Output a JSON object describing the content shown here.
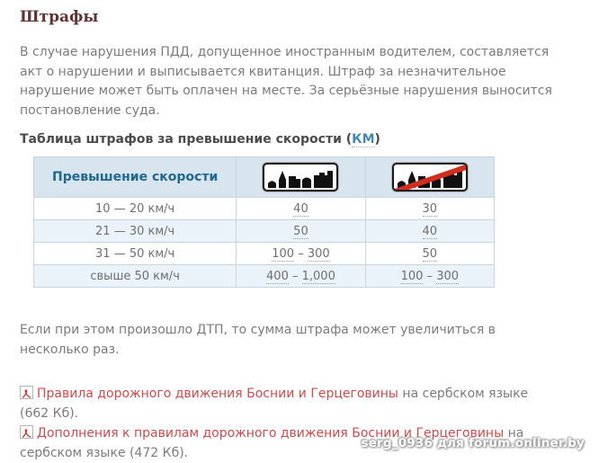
{
  "page": {
    "heading": "Штрафы",
    "intro": "В случае нарушения ПДД, допущенное иностранным водителем, составляется\nакт о нарушении и выписывается квитанция. Штраф за незначительное\nнарушение может быть оплачен на месте. За серьёзные нарушения выносится\nпостановление суда.",
    "table_title_prefix": "Таблица штрафов за превышение скорости (",
    "table_title_abbr": "КМ",
    "table_title_suffix": ")",
    "accident_note": "Если при этом произошло ДТП, то сумма штрафа может увеличиться в\nнесколько раз.",
    "watermark": "serg_0936 для forum.onliner.by"
  },
  "fines_table": {
    "header_label": "Превышение скорости",
    "column_icons": [
      "built-up-area-sign",
      "end-of-built-up-area-sign"
    ],
    "range_separator": " – ",
    "rows": [
      {
        "label": "10 — 20 км/ч",
        "in_city": [
          "40"
        ],
        "out_city": [
          "30"
        ]
      },
      {
        "label": "21 — 30 км/ч",
        "in_city": [
          "50"
        ],
        "out_city": [
          "40"
        ]
      },
      {
        "label": "31 — 50 км/ч",
        "in_city": [
          "100",
          "300"
        ],
        "out_city": [
          "50"
        ]
      },
      {
        "label": "свыше 50 км/ч",
        "in_city": [
          "400",
          "1,000"
        ],
        "out_city": [
          "100",
          "300"
        ]
      }
    ]
  },
  "downloads": [
    {
      "icon": "pdf-icon",
      "link_text": "Правила дорожного движения Боснии и Герцеговины",
      "suffix": " на сербском языке (662 Кб)."
    },
    {
      "icon": "pdf-icon",
      "link_text": "Дополнения к правилам дорожного движения Боснии и Герцеговины",
      "suffix": " на сербском языке (472 Кб)."
    }
  ],
  "colors": {
    "heading": "#5d3433",
    "text-gray": "#7b7b7b",
    "title-gray": "#4b4b4b",
    "head-blue": "#20688e",
    "abbr-blue": "#4589b5",
    "link-red": "#c94c4c",
    "head-bg": "#d8e4ee",
    "row-alt": "#eaf3f9"
  }
}
